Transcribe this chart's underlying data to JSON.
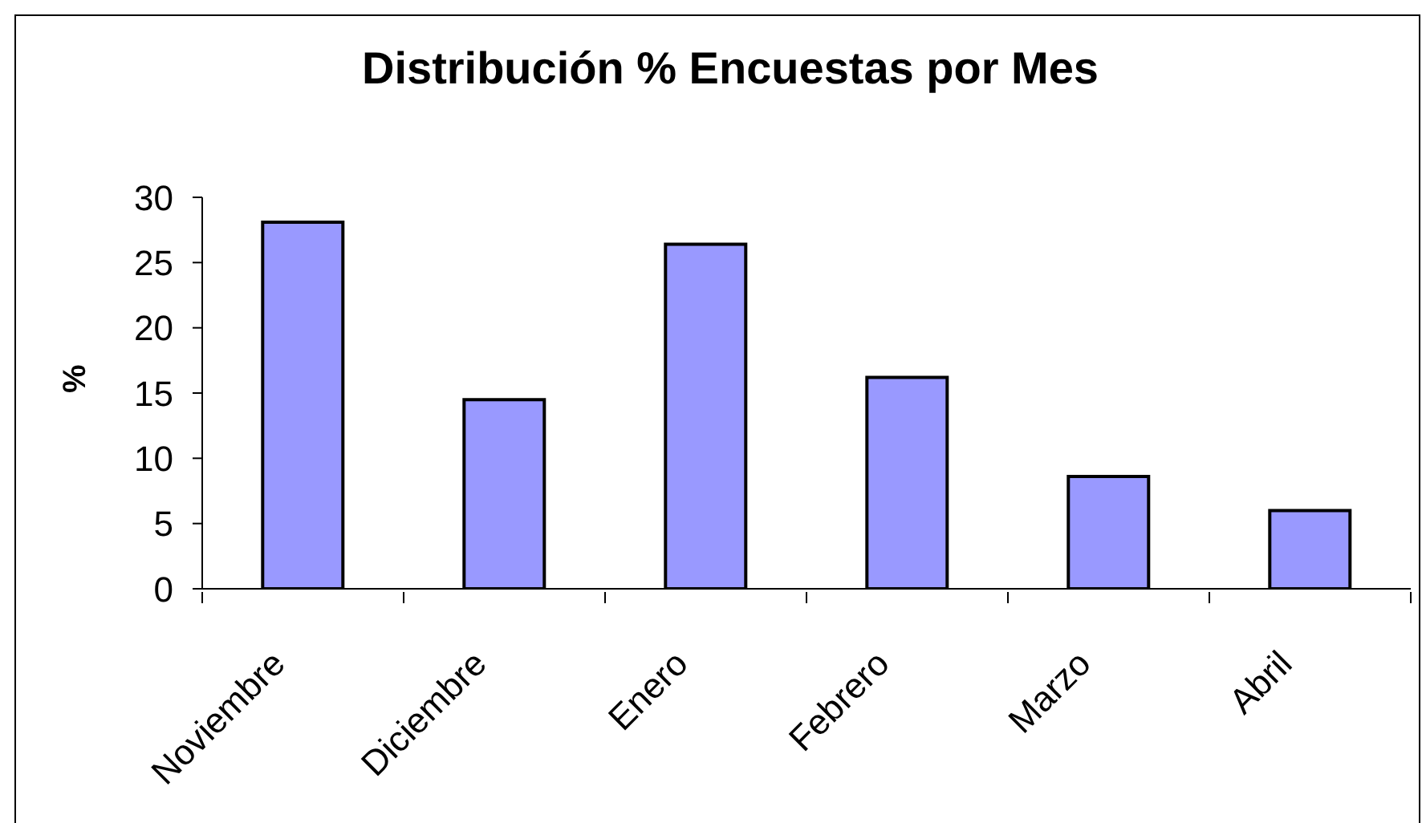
{
  "chart_data": {
    "type": "bar",
    "title": "Distribución % Encuestas por Mes",
    "ylabel": "%",
    "categories": [
      "Noviembre",
      "Diciembre",
      "Enero",
      "Febrero",
      "Marzo",
      "Abril"
    ],
    "values": [
      28.1,
      14.5,
      26.4,
      16.2,
      8.6,
      6.0
    ],
    "color": "#9999ff",
    "ylim": [
      0,
      30
    ],
    "yticks": [
      0,
      5,
      10,
      15,
      20,
      25,
      30
    ]
  }
}
